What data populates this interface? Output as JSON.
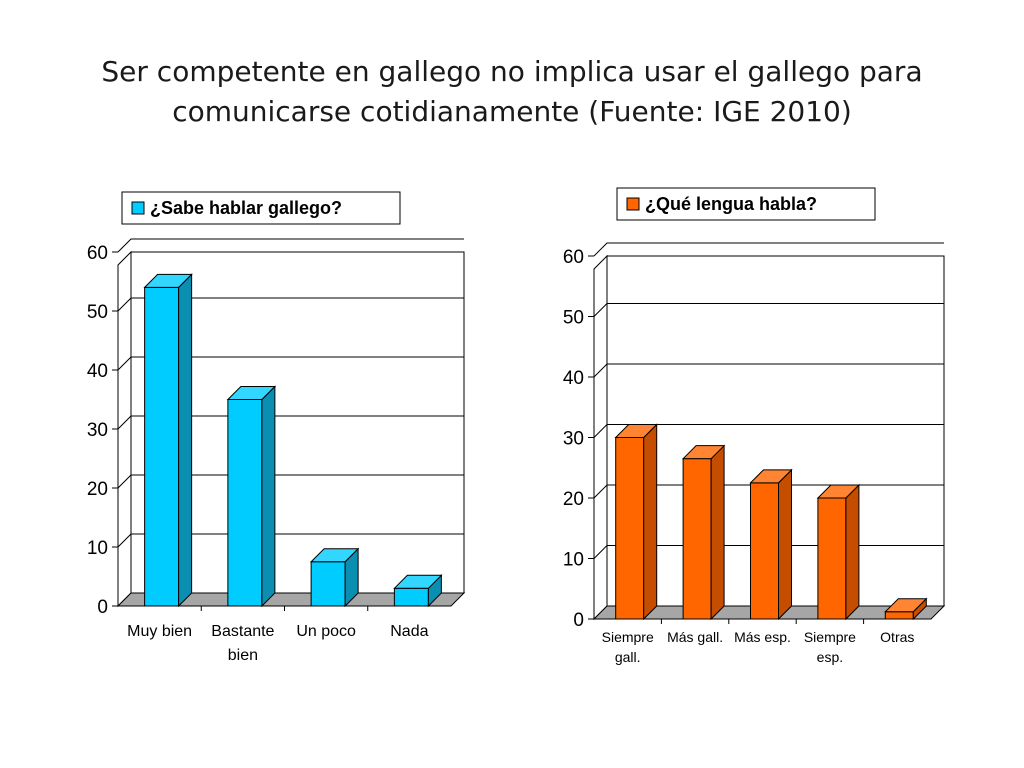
{
  "slide": {
    "title_line1": "Ser competente en gallego no implica usar el gallego para",
    "title_line2": "comunicarse cotidianamente (Fuente: IGE 2010)"
  },
  "colors": {
    "cyan": "#00ccff",
    "cyan_dark": "#0a8fb3",
    "cyan_top": "#33d6ff",
    "orange": "#ff6600",
    "orange_dark": "#c44d00",
    "orange_top": "#ff8533",
    "floor": "#a6a6a6",
    "grid": "#000000"
  },
  "chart_data": [
    {
      "type": "bar",
      "legend": "¿Sabe hablar gallego?",
      "categories": [
        [
          "Muy bien"
        ],
        [
          "Bastante",
          "bien"
        ],
        [
          "Un poco"
        ],
        [
          "Nada"
        ]
      ],
      "values": [
        54,
        35,
        7.5,
        3
      ],
      "ylim": [
        0,
        60
      ],
      "yticks": [
        "0",
        "10",
        "20",
        "30",
        "40",
        "50",
        "60"
      ],
      "title": "",
      "xlabel": "",
      "ylabel": ""
    },
    {
      "type": "bar",
      "legend": "¿Qué lengua habla?",
      "categories": [
        [
          "Siempre",
          "gall."
        ],
        [
          "Más gall."
        ],
        [
          "Más esp."
        ],
        [
          "Siempre",
          "esp."
        ],
        [
          "Otras"
        ]
      ],
      "values": [
        30,
        26.5,
        22.5,
        20,
        1.2
      ],
      "ylim": [
        0,
        60
      ],
      "yticks": [
        "0",
        "10",
        "20",
        "30",
        "40",
        "50",
        "60"
      ],
      "title": "",
      "xlabel": "",
      "ylabel": ""
    }
  ]
}
